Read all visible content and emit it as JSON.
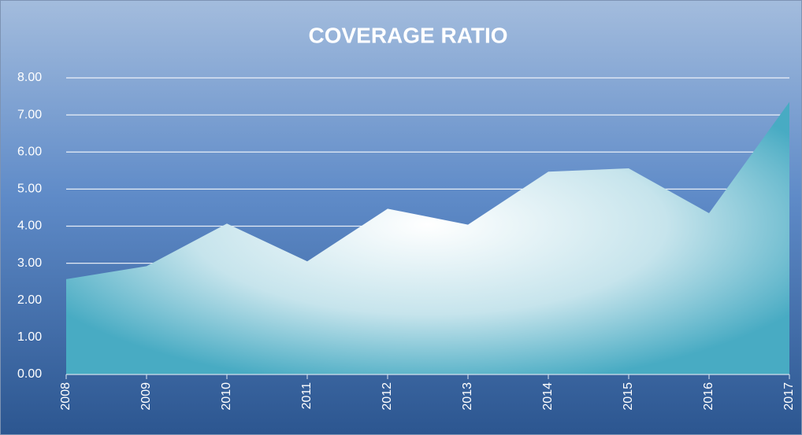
{
  "chart_data": {
    "type": "area",
    "title": "COVERAGE RATIO",
    "categories": [
      "2008",
      "2009",
      "2010",
      "2011",
      "2012",
      "2013",
      "2014",
      "2015",
      "2016",
      "2017"
    ],
    "values": [
      2.57,
      2.92,
      4.07,
      3.05,
      4.47,
      4.04,
      5.47,
      5.56,
      4.35,
      7.35
    ],
    "ylim": [
      0,
      8
    ],
    "yticks": [
      {
        "value": 0,
        "label": "0.00"
      },
      {
        "value": 1,
        "label": "1.00"
      },
      {
        "value": 2,
        "label": "2.00"
      },
      {
        "value": 3,
        "label": "3.00"
      },
      {
        "value": 4,
        "label": "4.00"
      },
      {
        "value": 5,
        "label": "5.00"
      },
      {
        "value": 6,
        "label": "6.00"
      },
      {
        "value": 7,
        "label": "7.00"
      },
      {
        "value": 8,
        "label": "8.00"
      }
    ],
    "grid": true
  }
}
